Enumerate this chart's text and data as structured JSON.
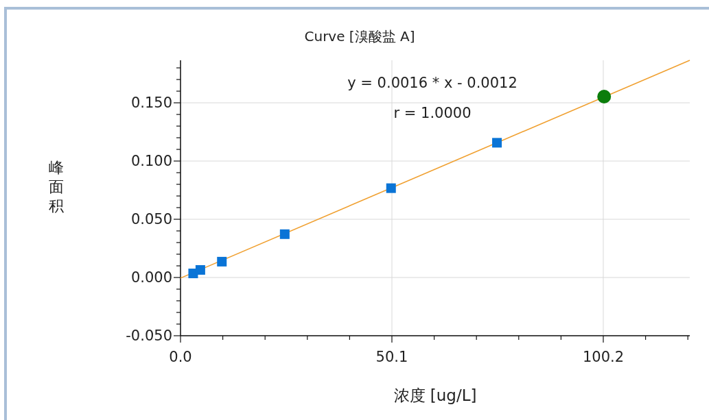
{
  "chart_data": {
    "type": "scatter",
    "title": "Curve [溴酸盐 A]",
    "xlabel": "浓度 [ug/L]",
    "ylabel": "峰面积",
    "annotations": [
      "y = 0.0016 * x  - 0.0012",
      "r = 1.0000"
    ],
    "xlim": [
      0,
      120.7
    ],
    "ylim": [
      -0.05,
      0.1865
    ],
    "xticks": [
      {
        "value": 0,
        "label": "0.0"
      },
      {
        "value": 10.02,
        "label": null
      },
      {
        "value": 20.04,
        "label": null
      },
      {
        "value": 30.06,
        "label": null
      },
      {
        "value": 40.08,
        "label": null
      },
      50.1,
      {
        "value": 60.12,
        "label": null
      },
      {
        "value": 70.14,
        "label": null
      },
      {
        "value": 80.16,
        "label": null
      },
      {
        "value": 90.18,
        "label": null
      },
      100.2,
      {
        "value": 110.22,
        "label": null
      },
      {
        "value": 120.24,
        "label": null
      }
    ],
    "yticks": [
      {
        "value": -0.05,
        "label": "-0.050"
      },
      {
        "value": -0.04,
        "label": null
      },
      {
        "value": -0.03,
        "label": null
      },
      {
        "value": -0.02,
        "label": null
      },
      {
        "value": -0.01,
        "label": null
      },
      {
        "value": 0,
        "label": "0.000"
      },
      {
        "value": 0.01,
        "label": null
      },
      {
        "value": 0.02,
        "label": null
      },
      {
        "value": 0.03,
        "label": null
      },
      {
        "value": 0.04,
        "label": null
      },
      {
        "value": 0.05,
        "label": "0.050"
      },
      {
        "value": 0.06,
        "label": null
      },
      {
        "value": 0.07,
        "label": null
      },
      {
        "value": 0.08,
        "label": null
      },
      {
        "value": 0.09,
        "label": null
      },
      {
        "value": 0.1,
        "label": "0.100"
      },
      {
        "value": 0.11,
        "label": null
      },
      {
        "value": 0.12,
        "label": null
      },
      {
        "value": 0.13,
        "label": null
      },
      {
        "value": 0.14,
        "label": null
      },
      {
        "value": 0.15,
        "label": "0.150"
      },
      {
        "value": 0.16,
        "label": null
      },
      {
        "value": 0.17,
        "label": null
      },
      {
        "value": 0.18,
        "label": null
      }
    ],
    "grid": true,
    "series": [
      {
        "type": "line",
        "color": "#f0a030",
        "marker": "none",
        "line_style": "solid",
        "x": [
          0,
          120.7
        ],
        "values": [
          -0.0005,
          0.1865
        ]
      },
      {
        "color": "#0a74d6",
        "marker": "square",
        "x": [
          3.0,
          4.7,
          9.8,
          24.7,
          49.9,
          75.0
        ],
        "values": [
          0.0035,
          0.0065,
          0.0136,
          0.0372,
          0.0767,
          0.1157
        ]
      },
      {
        "color": "#0b7d0b",
        "marker": "circle",
        "x": [
          100.4
        ],
        "values": [
          0.1553
        ]
      }
    ]
  }
}
